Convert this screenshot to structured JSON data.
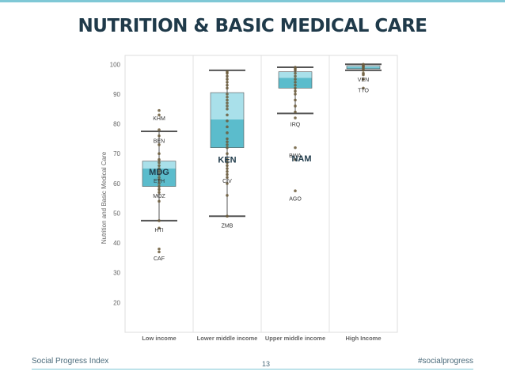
{
  "slide": {
    "title": "NUTRITION & BASIC MEDICAL CARE",
    "footer_left": "Social Progress Index",
    "footer_right": "#socialprogress",
    "page_number": "13"
  },
  "colors": {
    "title": "#1f3a4a",
    "accent_line": "#7fc8d6",
    "footer_text": "#4a6a7a",
    "box_dark": "#5bbccc",
    "box_light": "#a9e0ea",
    "whisker": "#555555",
    "point": "#6b5a3a",
    "axis_text": "#666666",
    "gridline": "#e5e5e5"
  },
  "chart_data": {
    "type": "box",
    "ylabel": "Nutrition and Basic Medical Care",
    "xlabel": "",
    "ylim": [
      10,
      103
    ],
    "yticks": [
      20,
      30,
      40,
      50,
      60,
      70,
      80,
      90,
      100
    ],
    "categories": [
      "Low income",
      "Lower middle income",
      "Upper middle income",
      "High Income"
    ],
    "boxes": [
      {
        "category": "Low income",
        "whisker_low": 47.5,
        "q1": 59,
        "median": 65,
        "q3": 67.5,
        "whisker_high": 77.5,
        "points": [
          37,
          38,
          45,
          47.5,
          54,
          57,
          58,
          59,
          60,
          61,
          62,
          63,
          64,
          65,
          66,
          67,
          68,
          70,
          73,
          76,
          78,
          83,
          84.5
        ]
      },
      {
        "category": "Lower middle income",
        "whisker_low": 49,
        "q1": 72,
        "median": 81.5,
        "q3": 90.5,
        "whisker_high": 98,
        "points": [
          49,
          56,
          60,
          62,
          63,
          64,
          65,
          66,
          67,
          68,
          70,
          72,
          73,
          74,
          75,
          77,
          79,
          81,
          83,
          85,
          86,
          87,
          88,
          89,
          90,
          92,
          93,
          94,
          95,
          96,
          97,
          97.5
        ]
      },
      {
        "category": "Upper middle income",
        "whisker_low": 83.5,
        "q1": 92,
        "median": 95.5,
        "q3": 97.5,
        "whisker_high": 99,
        "points": [
          57.5,
          68,
          72,
          82,
          84,
          86,
          88,
          90,
          91,
          92,
          93,
          94,
          95,
          96,
          97,
          98,
          98.5,
          99
        ]
      },
      {
        "category": "High Income",
        "whisker_low": 98,
        "q1": 98.5,
        "median": 99,
        "q3": 99.5,
        "whisker_high": 100,
        "points": [
          92,
          95,
          96.5,
          97,
          98,
          98.5,
          99,
          99.3,
          99.6,
          100
        ]
      }
    ],
    "point_labels": [
      {
        "category": "Low income",
        "label": "KHM",
        "y": 82,
        "dx": 0
      },
      {
        "category": "Low income",
        "label": "BEN",
        "y": 74.5,
        "dx": 0
      },
      {
        "category": "Low income",
        "label": "ETH",
        "y": 61,
        "dx": 0
      },
      {
        "category": "Low income",
        "label": "MOZ",
        "y": 56,
        "dx": 0
      },
      {
        "category": "Low income",
        "label": "HTI",
        "y": 44.5,
        "dx": 0
      },
      {
        "category": "Low income",
        "label": "CAF",
        "y": 35,
        "dx": 0
      },
      {
        "category": "Lower middle income",
        "label": "CIV",
        "y": 61,
        "dx": 0
      },
      {
        "category": "Lower middle income",
        "label": "ZMB",
        "y": 46,
        "dx": 0
      },
      {
        "category": "Upper middle income",
        "label": "IRQ",
        "y": 80,
        "dx": 0
      },
      {
        "category": "Upper middle income",
        "label": "BWA",
        "y": 69.5,
        "dx": 0
      },
      {
        "category": "Upper middle income",
        "label": "AGO",
        "y": 55,
        "dx": 0
      },
      {
        "category": "High Income",
        "label": "VEN",
        "y": 95,
        "dx": 0
      },
      {
        "category": "High Income",
        "label": "TTO",
        "y": 91.5,
        "dx": 0
      }
    ],
    "highlights": [
      {
        "category": "Low income",
        "label": "MDG",
        "y": 64,
        "dx": 0
      },
      {
        "category": "Lower middle income",
        "label": "KEN",
        "y": 68,
        "dx": 0
      },
      {
        "category": "Upper middle income",
        "label": "NAM",
        "y": 68.5,
        "dx": 8
      }
    ]
  }
}
